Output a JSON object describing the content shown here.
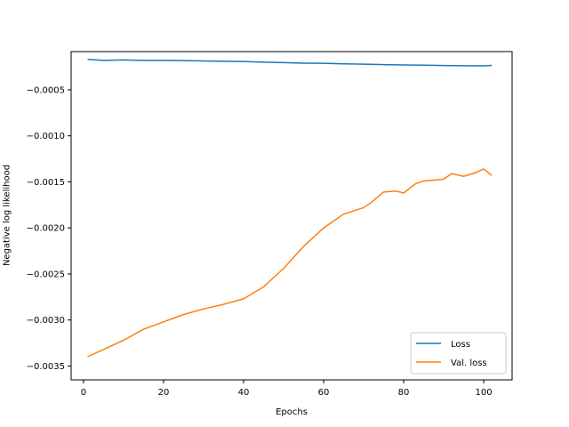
{
  "chart_data": {
    "type": "line",
    "title": "",
    "xlabel": "Epochs",
    "ylabel": "Negative log likelihood",
    "xlim": [
      -3.1,
      107.1
    ],
    "ylim": [
      -0.00365,
      -8.5e-05
    ],
    "xticks": [
      0,
      20,
      40,
      60,
      80,
      100
    ],
    "xtick_labels": [
      "0",
      "20",
      "40",
      "60",
      "80",
      "100"
    ],
    "yticks": [
      -0.0035,
      -0.003,
      -0.0025,
      -0.002,
      -0.0015,
      -0.001,
      -0.0005
    ],
    "ytick_labels": [
      "−0.0035",
      "−0.0030",
      "−0.0025",
      "−0.0020",
      "−0.0015",
      "−0.0010",
      "−0.0005"
    ],
    "grid": false,
    "legend_position": "lower right",
    "series": [
      {
        "name": "Loss",
        "color": "#1f77b4",
        "x": [
          1,
          5,
          10,
          15,
          20,
          25,
          30,
          35,
          40,
          45,
          50,
          55,
          60,
          65,
          70,
          75,
          80,
          85,
          90,
          95,
          100,
          102
        ],
        "values": [
          -0.00017,
          -0.00018,
          -0.000175,
          -0.00018,
          -0.00018,
          -0.000183,
          -0.000186,
          -0.00019,
          -0.000192,
          -0.0002,
          -0.000204,
          -0.00021,
          -0.000212,
          -0.000218,
          -0.000222,
          -0.000226,
          -0.00023,
          -0.000232,
          -0.000236,
          -0.000238,
          -0.00024,
          -0.000235
        ]
      },
      {
        "name": "Val. loss",
        "color": "#ff7f0e",
        "x": [
          1,
          5,
          10,
          15,
          20,
          25,
          30,
          35,
          40,
          45,
          50,
          55,
          60,
          65,
          70,
          72,
          75,
          78,
          80,
          83,
          85,
          88,
          90,
          92,
          95,
          98,
          100,
          102
        ],
        "values": [
          -0.0034,
          -0.00332,
          -0.00322,
          -0.0031,
          -0.00302,
          -0.00294,
          -0.00288,
          -0.00283,
          -0.00277,
          -0.00264,
          -0.00244,
          -0.0022,
          -0.002,
          -0.00185,
          -0.00178,
          -0.00172,
          -0.00161,
          -0.0016,
          -0.00162,
          -0.00152,
          -0.00149,
          -0.00148,
          -0.00147,
          -0.00141,
          -0.00144,
          -0.0014,
          -0.00136,
          -0.00143
        ]
      }
    ]
  }
}
